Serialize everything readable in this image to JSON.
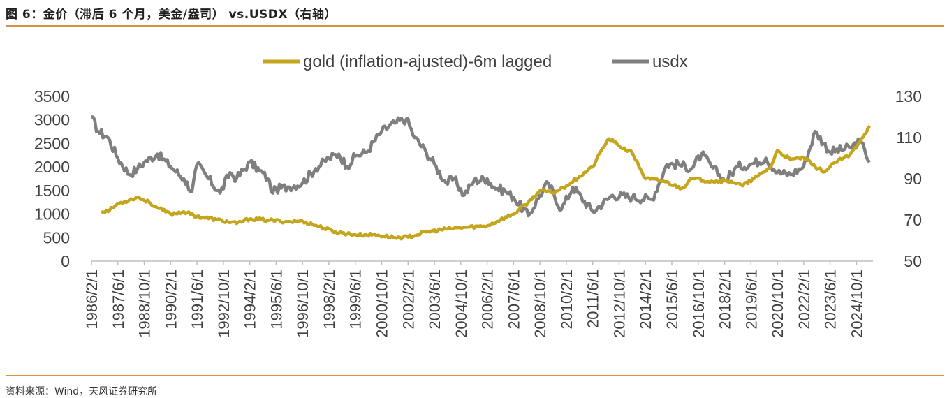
{
  "header": {
    "title": "图 6：金价（滞后 6 个月，美金/盎司） vs.USDX（右轴）"
  },
  "footer": {
    "source": "资料来源：Wind，天风证券研究所"
  },
  "colors": {
    "gold": "#c4a51c",
    "usdx": "#7f7f7f",
    "rule": "#d9903f"
  },
  "chart_data": {
    "type": "line",
    "title": "",
    "xlabel": "",
    "ylabel": "",
    "legend_position": "top-center",
    "grid": false,
    "ylim_left": [
      0,
      3500
    ],
    "ylim_right": [
      50,
      130
    ],
    "yticks_left": [
      "0",
      "500",
      "1000",
      "1500",
      "2000",
      "2500",
      "3000",
      "3500"
    ],
    "yticks_right": [
      "50",
      "70",
      "90",
      "110",
      "130"
    ],
    "x_tick_labels": [
      "1986/2/1",
      "1987/6/1",
      "1988/10/1",
      "1990/2/1",
      "1991/6/1",
      "1992/10/1",
      "1994/2/1",
      "1995/6/1",
      "1996/10/1",
      "1998/2/1",
      "1999/6/1",
      "2000/10/1",
      "2002/2/1",
      "2003/6/1",
      "2004/10/1",
      "2006/2/1",
      "2007/6/1",
      "2008/10/1",
      "2010/2/1",
      "2011/6/1",
      "2012/10/1",
      "2014/2/1",
      "2015/6/1",
      "2016/10/1",
      "2018/2/1",
      "2019/6/1",
      "2020/10/1",
      "2022/2/1",
      "2023/6/1",
      "2024/10/1"
    ],
    "series": [
      {
        "name": "gold (inflation-ajusted)-6m lagged",
        "axis": "left",
        "points": [
          [
            "1986-08",
            1050
          ],
          [
            "1987-01",
            1080
          ],
          [
            "1987-06",
            1220
          ],
          [
            "1988-01",
            1300
          ],
          [
            "1988-06",
            1360
          ],
          [
            "1989-01",
            1250
          ],
          [
            "1989-06",
            1130
          ],
          [
            "1990-02",
            1000
          ],
          [
            "1990-10",
            1050
          ],
          [
            "1991-06",
            950
          ],
          [
            "1992-06",
            880
          ],
          [
            "1993-06",
            800
          ],
          [
            "1994-02",
            900
          ],
          [
            "1995-01",
            870
          ],
          [
            "1996-01",
            840
          ],
          [
            "1996-10",
            850
          ],
          [
            "1997-06",
            760
          ],
          [
            "1998-06",
            620
          ],
          [
            "1999-06",
            560
          ],
          [
            "2000-06",
            560
          ],
          [
            "2001-06",
            500
          ],
          [
            "2002-02",
            510
          ],
          [
            "2003-01",
            620
          ],
          [
            "2004-01",
            680
          ],
          [
            "2005-01",
            720
          ],
          [
            "2006-02",
            750
          ],
          [
            "2006-10",
            880
          ],
          [
            "2007-06",
            1000
          ],
          [
            "2008-03",
            1250
          ],
          [
            "2008-10",
            1500
          ],
          [
            "2009-06",
            1450
          ],
          [
            "2010-02",
            1600
          ],
          [
            "2010-10",
            1800
          ],
          [
            "2011-06",
            2000
          ],
          [
            "2011-12",
            2400
          ],
          [
            "2012-04",
            2600
          ],
          [
            "2012-10",
            2450
          ],
          [
            "2013-06",
            2300
          ],
          [
            "2014-02",
            1750
          ],
          [
            "2015-01",
            1700
          ],
          [
            "2015-12",
            1550
          ],
          [
            "2016-06",
            1750
          ],
          [
            "2017-06",
            1700
          ],
          [
            "2018-06",
            1700
          ],
          [
            "2019-01",
            1600
          ],
          [
            "2019-10",
            1800
          ],
          [
            "2020-06",
            2000
          ],
          [
            "2020-10",
            2350
          ],
          [
            "2021-06",
            2150
          ],
          [
            "2022-02",
            2200
          ],
          [
            "2022-09",
            2000
          ],
          [
            "2023-03",
            1900
          ],
          [
            "2023-09",
            2100
          ],
          [
            "2024-06",
            2250
          ],
          [
            "2025-01",
            2600
          ],
          [
            "2025-06",
            2870
          ]
        ]
      },
      {
        "name": "usdx",
        "axis": "right",
        "points": [
          [
            "1986-02",
            120
          ],
          [
            "1986-06",
            113
          ],
          [
            "1986-12",
            110
          ],
          [
            "1987-06",
            100
          ],
          [
            "1988-01",
            92
          ],
          [
            "1988-06",
            95
          ],
          [
            "1988-10",
            98
          ],
          [
            "1989-06",
            102
          ],
          [
            "1990-02",
            96
          ],
          [
            "1990-10",
            90
          ],
          [
            "1991-03",
            84
          ],
          [
            "1991-06",
            97
          ],
          [
            "1992-01",
            90
          ],
          [
            "1992-08",
            83
          ],
          [
            "1993-02",
            93
          ],
          [
            "1993-06",
            90
          ],
          [
            "1994-02",
            98
          ],
          [
            "1994-08",
            94
          ],
          [
            "1995-01",
            90
          ],
          [
            "1995-04",
            83
          ],
          [
            "1995-06",
            85
          ],
          [
            "1996-01",
            86
          ],
          [
            "1996-10",
            88
          ],
          [
            "1997-06",
            95
          ],
          [
            "1998-02",
            100
          ],
          [
            "1998-08",
            102
          ],
          [
            "1999-01",
            96
          ],
          [
            "1999-06",
            101
          ],
          [
            "2000-01",
            103
          ],
          [
            "2000-10",
            113
          ],
          [
            "2001-06",
            117
          ],
          [
            "2002-01",
            119
          ],
          [
            "2002-06",
            110
          ],
          [
            "2003-01",
            103
          ],
          [
            "2003-06",
            97
          ],
          [
            "2004-01",
            88
          ],
          [
            "2004-06",
            90
          ],
          [
            "2004-12",
            82
          ],
          [
            "2005-06",
            89
          ],
          [
            "2006-02",
            90
          ],
          [
            "2006-06",
            86
          ],
          [
            "2007-01",
            84
          ],
          [
            "2007-06",
            81
          ],
          [
            "2008-03",
            72
          ],
          [
            "2008-10",
            82
          ],
          [
            "2009-03",
            88
          ],
          [
            "2009-11",
            75
          ],
          [
            "2010-06",
            86
          ],
          [
            "2011-06",
            74
          ],
          [
            "2012-06",
            82
          ],
          [
            "2013-06",
            81
          ],
          [
            "2014-06",
            80
          ],
          [
            "2015-03",
            97
          ],
          [
            "2015-10",
            97
          ],
          [
            "2016-06",
            95
          ],
          [
            "2016-12",
            102
          ],
          [
            "2017-06",
            96
          ],
          [
            "2018-02",
            89
          ],
          [
            "2018-10",
            96
          ],
          [
            "2019-06",
            97
          ],
          [
            "2020-03",
            100
          ],
          [
            "2020-10",
            93
          ],
          [
            "2021-06",
            92
          ],
          [
            "2022-02",
            96
          ],
          [
            "2022-09",
            113
          ],
          [
            "2023-06",
            103
          ],
          [
            "2024-06",
            105
          ],
          [
            "2024-12",
            108
          ],
          [
            "2025-03",
            104
          ],
          [
            "2025-06",
            98
          ]
        ]
      }
    ]
  }
}
